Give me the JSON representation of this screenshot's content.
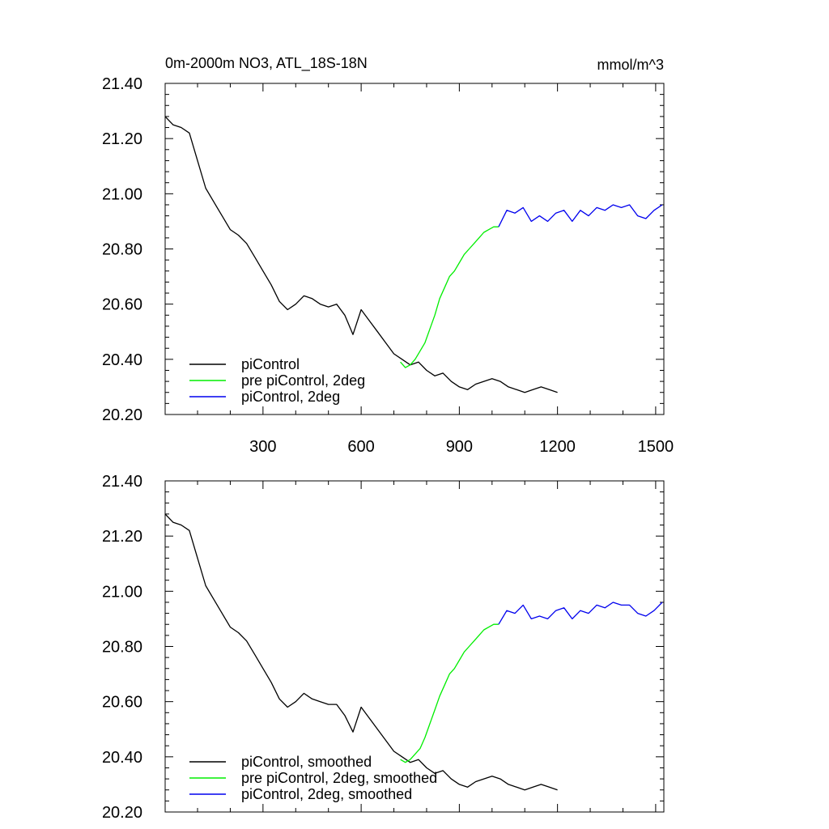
{
  "figure": {
    "title": "0m-2000m NO3, ATL_18S-18N",
    "units": "mmol/m^3"
  },
  "chart_data": [
    {
      "type": "line",
      "title": "0m-2000m NO3, ATL_18S-18N",
      "units_label": "mmol/m^3",
      "xlim": [
        1,
        1525
      ],
      "ylim": [
        20.2,
        21.4
      ],
      "x_ticks": [
        300,
        600,
        900,
        1200,
        1500
      ],
      "x_tick_labels": [
        "300",
        "600",
        "900",
        "1200",
        "1500"
      ],
      "y_ticks": [
        20.2,
        20.4,
        20.6,
        20.8,
        21.0,
        21.2,
        21.4
      ],
      "y_tick_labels": [
        "20.20",
        "20.40",
        "20.60",
        "20.80",
        "21.00",
        "21.20",
        "21.40"
      ],
      "show_x_tick_labels": true,
      "legend_position": "lower-left",
      "series": [
        {
          "name": "piControl",
          "color": "#000000",
          "x": [
            1,
            25,
            50,
            75,
            100,
            125,
            150,
            175,
            200,
            225,
            250,
            275,
            300,
            325,
            350,
            375,
            400,
            425,
            450,
            475,
            500,
            525,
            550,
            575,
            600,
            625,
            650,
            675,
            700,
            725,
            750,
            775,
            800,
            825,
            850,
            875,
            900,
            925,
            950,
            975,
            1000,
            1025,
            1050,
            1075,
            1100,
            1125,
            1150,
            1175,
            1200
          ],
          "y": [
            21.28,
            21.25,
            21.24,
            21.22,
            21.12,
            21.02,
            20.97,
            20.92,
            20.87,
            20.85,
            20.82,
            20.77,
            20.72,
            20.67,
            20.61,
            20.58,
            20.6,
            20.63,
            20.62,
            20.6,
            20.59,
            20.6,
            20.56,
            20.49,
            20.58,
            20.54,
            20.5,
            20.46,
            20.42,
            20.4,
            20.38,
            20.39,
            20.36,
            20.34,
            20.35,
            20.32,
            20.3,
            20.29,
            20.31,
            20.32,
            20.33,
            20.32,
            20.3,
            20.29,
            20.28,
            20.29,
            20.3,
            20.29,
            20.28
          ]
        },
        {
          "name": "pre piControl, 2deg",
          "color": "#00ee00",
          "x": [
            720,
            735,
            750,
            765,
            780,
            795,
            810,
            825,
            840,
            855,
            870,
            885,
            900,
            915,
            930,
            945,
            960,
            975,
            990,
            1005,
            1020
          ],
          "y": [
            20.39,
            20.37,
            20.38,
            20.4,
            20.43,
            20.46,
            20.51,
            20.56,
            20.62,
            20.66,
            20.7,
            20.72,
            20.75,
            20.78,
            20.8,
            20.82,
            20.84,
            20.86,
            20.87,
            20.88,
            20.88
          ]
        },
        {
          "name": "piControl, 2deg",
          "color": "#0000ee",
          "x": [
            1020,
            1045,
            1070,
            1095,
            1120,
            1145,
            1170,
            1195,
            1220,
            1245,
            1270,
            1295,
            1320,
            1345,
            1370,
            1395,
            1420,
            1445,
            1470,
            1495,
            1520
          ],
          "y": [
            20.88,
            20.94,
            20.93,
            20.95,
            20.9,
            20.92,
            20.9,
            20.93,
            20.94,
            20.9,
            20.94,
            20.92,
            20.95,
            20.94,
            20.96,
            20.95,
            20.96,
            20.92,
            20.91,
            20.94,
            20.96
          ]
        }
      ]
    },
    {
      "type": "line",
      "xlim": [
        1,
        1525
      ],
      "ylim": [
        20.2,
        21.4
      ],
      "x_ticks": [
        300,
        600,
        900,
        1200,
        1500
      ],
      "x_tick_labels": [],
      "y_ticks": [
        20.2,
        20.4,
        20.6,
        20.8,
        21.0,
        21.2,
        21.4
      ],
      "y_tick_labels": [
        "20.20",
        "20.40",
        "20.60",
        "20.80",
        "21.00",
        "21.20",
        "21.40"
      ],
      "show_x_tick_labels": false,
      "legend_position": "lower-left",
      "series": [
        {
          "name": "piControl, smoothed",
          "color": "#000000",
          "x": [
            1,
            25,
            50,
            75,
            100,
            125,
            150,
            175,
            200,
            225,
            250,
            275,
            300,
            325,
            350,
            375,
            400,
            425,
            450,
            475,
            500,
            525,
            550,
            575,
            600,
            625,
            650,
            675,
            700,
            725,
            750,
            775,
            800,
            825,
            850,
            875,
            900,
            925,
            950,
            975,
            1000,
            1025,
            1050,
            1075,
            1100,
            1125,
            1150,
            1175,
            1200
          ],
          "y": [
            21.28,
            21.25,
            21.24,
            21.22,
            21.12,
            21.02,
            20.97,
            20.92,
            20.87,
            20.85,
            20.82,
            20.77,
            20.72,
            20.67,
            20.61,
            20.58,
            20.6,
            20.63,
            20.61,
            20.6,
            20.59,
            20.59,
            20.55,
            20.49,
            20.58,
            20.54,
            20.5,
            20.46,
            20.42,
            20.4,
            20.38,
            20.39,
            20.36,
            20.34,
            20.35,
            20.32,
            20.3,
            20.29,
            20.31,
            20.32,
            20.33,
            20.32,
            20.3,
            20.29,
            20.28,
            20.29,
            20.3,
            20.29,
            20.28
          ]
        },
        {
          "name": "pre piControl, 2deg, smoothed",
          "color": "#00ee00",
          "x": [
            720,
            735,
            750,
            765,
            780,
            795,
            810,
            825,
            840,
            855,
            870,
            885,
            900,
            915,
            930,
            945,
            960,
            975,
            990,
            1005,
            1020
          ],
          "y": [
            20.39,
            20.38,
            20.39,
            20.41,
            20.43,
            20.47,
            20.52,
            20.57,
            20.62,
            20.66,
            20.7,
            20.72,
            20.75,
            20.78,
            20.8,
            20.82,
            20.84,
            20.86,
            20.87,
            20.88,
            20.88
          ]
        },
        {
          "name": "piControl, 2deg, smoothed",
          "color": "#0000ee",
          "x": [
            1020,
            1045,
            1070,
            1095,
            1120,
            1145,
            1170,
            1195,
            1220,
            1245,
            1270,
            1295,
            1320,
            1345,
            1370,
            1395,
            1420,
            1445,
            1470,
            1495,
            1520
          ],
          "y": [
            20.88,
            20.93,
            20.92,
            20.95,
            20.9,
            20.91,
            20.9,
            20.93,
            20.94,
            20.9,
            20.93,
            20.92,
            20.95,
            20.94,
            20.96,
            20.95,
            20.95,
            20.92,
            20.91,
            20.93,
            20.96
          ]
        }
      ]
    }
  ]
}
